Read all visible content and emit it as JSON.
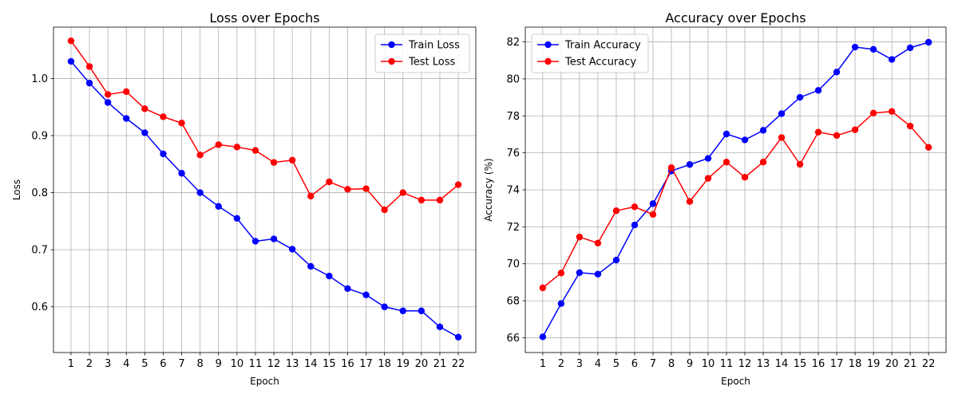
{
  "chart_data": [
    {
      "type": "line",
      "title": "Loss over Epochs",
      "xlabel": "Epoch",
      "ylabel": "Loss",
      "x": [
        1,
        2,
        3,
        4,
        5,
        6,
        7,
        8,
        9,
        10,
        11,
        12,
        13,
        14,
        15,
        16,
        17,
        18,
        19,
        20,
        21,
        22
      ],
      "xticks": [
        1,
        2,
        3,
        4,
        5,
        6,
        7,
        8,
        9,
        10,
        11,
        12,
        13,
        14,
        15,
        16,
        17,
        18,
        19,
        20,
        21,
        22
      ],
      "ylim": [
        0.52,
        1.09
      ],
      "yticks": [
        0.6,
        0.7,
        0.8,
        0.9,
        1.0
      ],
      "ytick_labels": [
        "0.6",
        "0.7",
        "0.8",
        "0.9",
        "1.0"
      ],
      "grid": true,
      "legend_position": "top-right",
      "series": [
        {
          "name": "Train Loss",
          "color": "#0000ff",
          "values": [
            1.03,
            0.992,
            0.958,
            0.93,
            0.905,
            0.868,
            0.834,
            0.8,
            0.776,
            0.755,
            0.715,
            0.719,
            0.701,
            0.671,
            0.654,
            0.632,
            0.621,
            0.6,
            0.593,
            0.593,
            0.565,
            0.547
          ]
        },
        {
          "name": "Test Loss",
          "color": "#ff0000",
          "values": [
            1.066,
            1.021,
            0.972,
            0.977,
            0.947,
            0.933,
            0.922,
            0.866,
            0.884,
            0.88,
            0.874,
            0.853,
            0.857,
            0.794,
            0.819,
            0.806,
            0.807,
            0.77,
            0.8,
            0.787,
            0.787,
            0.814
          ]
        }
      ]
    },
    {
      "type": "line",
      "title": "Accuracy over Epochs",
      "xlabel": "Epoch",
      "ylabel": "Accuracy (%)",
      "x": [
        1,
        2,
        3,
        4,
        5,
        6,
        7,
        8,
        9,
        10,
        11,
        12,
        13,
        14,
        15,
        16,
        17,
        18,
        19,
        20,
        21,
        22
      ],
      "xticks": [
        1,
        2,
        3,
        4,
        5,
        6,
        7,
        8,
        9,
        10,
        11,
        12,
        13,
        14,
        15,
        16,
        17,
        18,
        19,
        20,
        21,
        22
      ],
      "ylim": [
        65.2,
        82.8
      ],
      "yticks": [
        66,
        68,
        70,
        72,
        74,
        76,
        78,
        80,
        82
      ],
      "ytick_labels": [
        "66",
        "68",
        "70",
        "72",
        "74",
        "76",
        "78",
        "80",
        "82"
      ],
      "grid": true,
      "legend_position": "top-left",
      "series": [
        {
          "name": "Train Accuracy",
          "color": "#0000ff",
          "values": [
            66.05,
            67.85,
            69.52,
            69.44,
            70.2,
            72.1,
            73.25,
            75.02,
            75.37,
            75.7,
            77.02,
            76.7,
            77.22,
            78.12,
            79.0,
            79.38,
            80.37,
            81.72,
            81.6,
            81.05,
            81.68,
            81.98
          ]
        },
        {
          "name": "Test Accuracy",
          "color": "#ff0000",
          "values": [
            68.7,
            69.5,
            71.45,
            71.12,
            72.87,
            73.08,
            72.67,
            75.2,
            73.37,
            74.62,
            75.5,
            74.68,
            75.5,
            76.83,
            75.38,
            77.12,
            76.94,
            77.25,
            78.15,
            78.24,
            77.45,
            76.3
          ]
        }
      ]
    }
  ]
}
